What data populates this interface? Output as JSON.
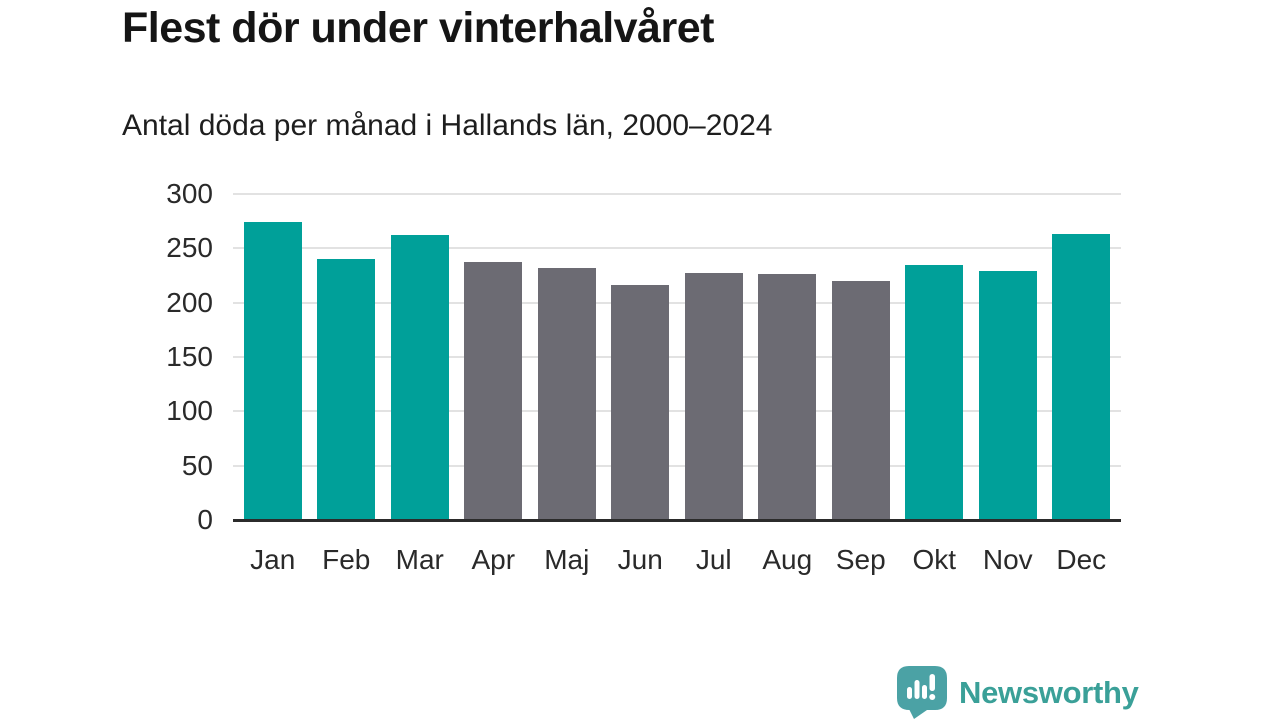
{
  "chart": {
    "title": "Flest dör under vinterhalvåret",
    "subtitle": "Antal döda per månad i Hallands län, 2000–2024"
  },
  "chart_data": {
    "type": "bar",
    "title": "Flest dör under vinterhalvåret",
    "subtitle": "Antal döda per månad i Hallands län, 2000–2024",
    "categories": [
      "Jan",
      "Feb",
      "Mar",
      "Apr",
      "Maj",
      "Jun",
      "Jul",
      "Aug",
      "Sep",
      "Okt",
      "Nov",
      "Dec"
    ],
    "values": [
      274,
      240,
      262,
      237,
      232,
      216,
      227,
      226,
      220,
      235,
      229,
      263
    ],
    "colors": [
      "#00a099",
      "#00a099",
      "#00a099",
      "#6c6b73",
      "#6c6b73",
      "#6c6b73",
      "#6c6b73",
      "#6c6b73",
      "#6c6b73",
      "#00a099",
      "#00a099",
      "#00a099"
    ],
    "highlight_color": "#00a099",
    "muted_color": "#6c6b73",
    "highlighted_months": [
      "Jan",
      "Feb",
      "Mar",
      "Okt",
      "Nov",
      "Dec"
    ],
    "xlabel": "",
    "ylabel": "",
    "ylim": [
      0,
      300
    ],
    "yticks": [
      0,
      50,
      100,
      150,
      200,
      250,
      300
    ],
    "grid": "horizontal",
    "legend": "none"
  },
  "footer": {
    "brand": "Newsworthy",
    "icon": "newsworthy-speech-bubble-bar-chart-icon"
  },
  "palette": {
    "background": "#ffffff",
    "grid": "#e2e2e2",
    "axis": "#2b2b2b",
    "text_dark": "#151515",
    "brand_teal": "#3aa098",
    "icon_teal": "#4ba2a5"
  }
}
